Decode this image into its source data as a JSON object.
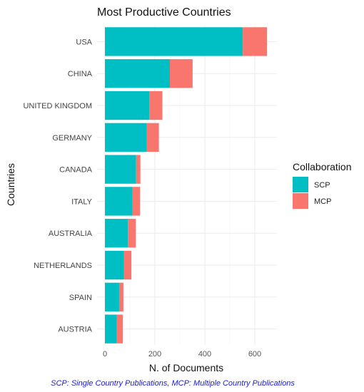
{
  "chart_data": {
    "type": "bar",
    "orientation": "horizontal",
    "stacked": true,
    "title": "Most Productive Countries",
    "xlabel": "N. of Documents",
    "ylabel": "Countries",
    "xlim": [
      0,
      650
    ],
    "xticks": [
      0,
      200,
      400,
      600
    ],
    "grid": true,
    "categories": [
      "USA",
      "CHINA",
      "UNITED KINGDOM",
      "GERMANY",
      "CANADA",
      "ITALY",
      "AUSTRALIA",
      "NETHERLANDS",
      "SPAIN",
      "AUSTRIA"
    ],
    "series": [
      {
        "name": "SCP",
        "color": "#00BFC4",
        "values": [
          552,
          260,
          178,
          167,
          125,
          111,
          92,
          76,
          57,
          47
        ]
      },
      {
        "name": "MCP",
        "color": "#F8766D",
        "values": [
          97,
          91,
          52,
          49,
          17,
          30,
          32,
          30,
          17,
          25
        ]
      }
    ],
    "legend": {
      "title": "Collaboration",
      "position": "right"
    },
    "caption": "SCP: Single Country Publications, MCP: Multiple Country Publications"
  }
}
